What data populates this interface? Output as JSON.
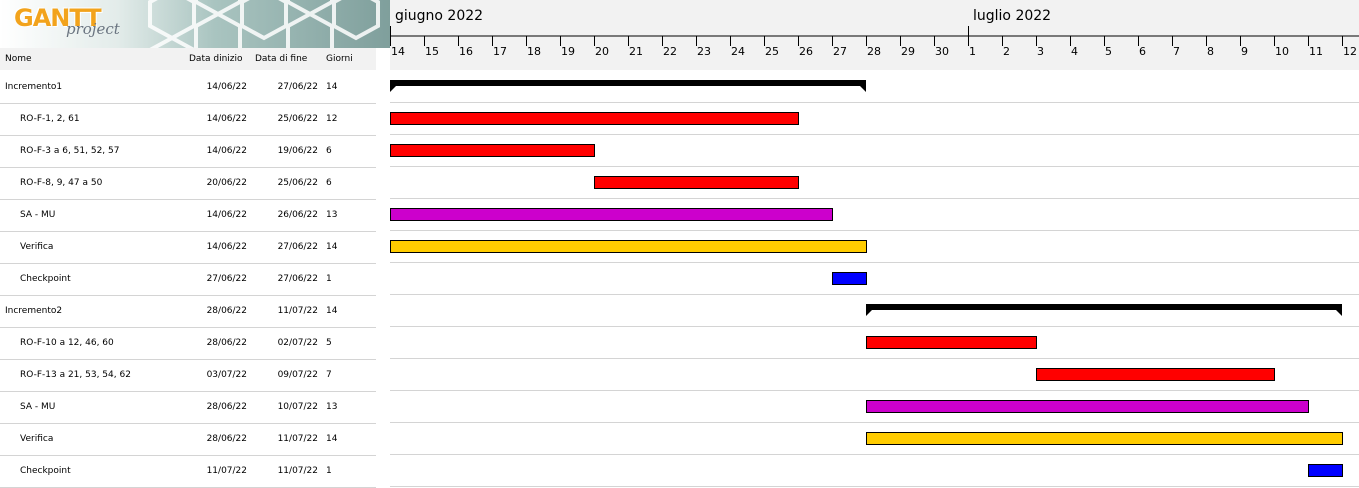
{
  "logo": {
    "word": "GANTT",
    "sub": "project"
  },
  "columns": {
    "name": "Nome",
    "start": "Data dinizio",
    "end": "Data di fine",
    "duration": "Giorni"
  },
  "timeline": {
    "months": [
      {
        "label": "giugno 2022",
        "first_day_index": 0
      },
      {
        "label": "luglio 2022",
        "first_day_index": 17
      }
    ],
    "days": [
      "14",
      "15",
      "16",
      "17",
      "18",
      "19",
      "20",
      "21",
      "22",
      "23",
      "24",
      "25",
      "26",
      "27",
      "28",
      "29",
      "30",
      "1",
      "2",
      "3",
      "4",
      "5",
      "6",
      "7",
      "8",
      "9",
      "10",
      "11",
      "12"
    ]
  },
  "colors": {
    "summary": "#000000",
    "ro": "#ff0000",
    "samu": "#cc00cc",
    "verifica": "#ffcc00",
    "checkpoint": "#0000ff",
    "row_line": "#d4d4d4",
    "header_bg": "#f2f2f2"
  },
  "tasks": [
    {
      "name": "Incremento1",
      "start": "14/06/22",
      "end": "27/06/22",
      "duration": "14",
      "level": 0,
      "kind": "summary",
      "bar_start_day": 0,
      "bar_end_day": 14
    },
    {
      "name": "RO-F-1, 2, 61",
      "start": "14/06/22",
      "end": "25/06/22",
      "duration": "12",
      "level": 1,
      "kind": "ro",
      "bar_start_day": 0,
      "bar_end_day": 12
    },
    {
      "name": "RO-F-3 a 6, 51, 52, 57",
      "start": "14/06/22",
      "end": "19/06/22",
      "duration": "6",
      "level": 1,
      "kind": "ro",
      "bar_start_day": 0,
      "bar_end_day": 6
    },
    {
      "name": "RO-F-8, 9, 47 a 50",
      "start": "20/06/22",
      "end": "25/06/22",
      "duration": "6",
      "level": 1,
      "kind": "ro",
      "bar_start_day": 6,
      "bar_end_day": 12
    },
    {
      "name": "SA - MU",
      "start": "14/06/22",
      "end": "26/06/22",
      "duration": "13",
      "level": 1,
      "kind": "samu",
      "bar_start_day": 0,
      "bar_end_day": 13
    },
    {
      "name": "Verifica",
      "start": "14/06/22",
      "end": "27/06/22",
      "duration": "14",
      "level": 1,
      "kind": "verifica",
      "bar_start_day": 0,
      "bar_end_day": 14
    },
    {
      "name": "Checkpoint",
      "start": "27/06/22",
      "end": "27/06/22",
      "duration": "1",
      "level": 1,
      "kind": "checkpoint",
      "bar_start_day": 13,
      "bar_end_day": 14
    },
    {
      "name": "Incremento2",
      "start": "28/06/22",
      "end": "11/07/22",
      "duration": "14",
      "level": 0,
      "kind": "summary",
      "bar_start_day": 14,
      "bar_end_day": 28
    },
    {
      "name": "RO-F-10 a 12, 46, 60",
      "start": "28/06/22",
      "end": "02/07/22",
      "duration": "5",
      "level": 1,
      "kind": "ro",
      "bar_start_day": 14,
      "bar_end_day": 19
    },
    {
      "name": "RO-F-13 a 21, 53, 54, 62",
      "start": "03/07/22",
      "end": "09/07/22",
      "duration": "7",
      "level": 1,
      "kind": "ro",
      "bar_start_day": 19,
      "bar_end_day": 26
    },
    {
      "name": "SA - MU",
      "start": "28/06/22",
      "end": "10/07/22",
      "duration": "13",
      "level": 1,
      "kind": "samu",
      "bar_start_day": 14,
      "bar_end_day": 27
    },
    {
      "name": "Verifica",
      "start": "28/06/22",
      "end": "11/07/22",
      "duration": "14",
      "level": 1,
      "kind": "verifica",
      "bar_start_day": 14,
      "bar_end_day": 28
    },
    {
      "name": "Checkpoint",
      "start": "11/07/22",
      "end": "11/07/22",
      "duration": "1",
      "level": 1,
      "kind": "checkpoint",
      "bar_start_day": 27,
      "bar_end_day": 28
    }
  ]
}
